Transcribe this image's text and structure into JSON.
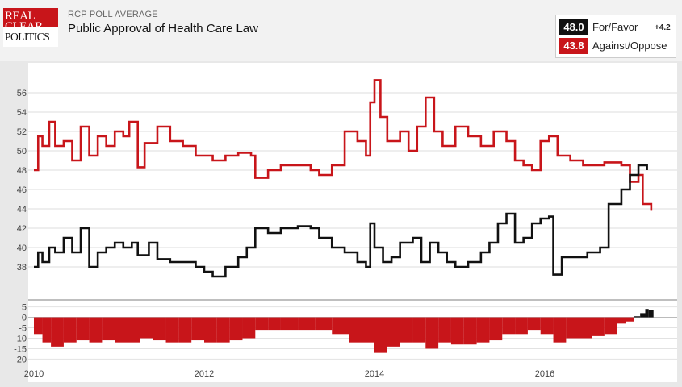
{
  "header": {
    "logo": {
      "line1": "REAL",
      "line2": "CLEAR",
      "line3": "POLITICS"
    },
    "subtitle": "RCP POLL AVERAGE",
    "title": "Public Approval of Health Care Law"
  },
  "legend": {
    "favor": {
      "value": "48.0",
      "label": "For/Favor",
      "spread": "+4.2",
      "color": "#111111"
    },
    "oppose": {
      "value": "43.8",
      "label": "Against/Oppose",
      "color": "#c8151a"
    }
  },
  "chart_data": [
    {
      "type": "line",
      "title": "Public Approval of Health Care Law",
      "x_ticks": [
        "2010",
        "2012",
        "2014",
        "2016"
      ],
      "ylim": [
        36,
        57.5
      ],
      "y_ticks": [
        38,
        40,
        42,
        44,
        46,
        48,
        50,
        52,
        54,
        56
      ],
      "grid": true,
      "series": [
        {
          "name": "Against/Oppose",
          "color": "#c8151a",
          "points": [
            [
              2010.0,
              48.0
            ],
            [
              2010.05,
              51.5
            ],
            [
              2010.1,
              50.5
            ],
            [
              2010.18,
              53.0
            ],
            [
              2010.25,
              50.5
            ],
            [
              2010.35,
              51.0
            ],
            [
              2010.45,
              49.0
            ],
            [
              2010.55,
              52.5
            ],
            [
              2010.65,
              49.5
            ],
            [
              2010.75,
              51.5
            ],
            [
              2010.85,
              50.5
            ],
            [
              2010.95,
              52.0
            ],
            [
              2011.05,
              51.5
            ],
            [
              2011.12,
              53.0
            ],
            [
              2011.22,
              48.3
            ],
            [
              2011.3,
              50.8
            ],
            [
              2011.45,
              52.5
            ],
            [
              2011.6,
              51.0
            ],
            [
              2011.75,
              50.5
            ],
            [
              2011.9,
              49.5
            ],
            [
              2012.0,
              49.5
            ],
            [
              2012.1,
              49.0
            ],
            [
              2012.25,
              49.5
            ],
            [
              2012.4,
              49.8
            ],
            [
              2012.55,
              49.5
            ],
            [
              2012.6,
              47.2
            ],
            [
              2012.75,
              48.0
            ],
            [
              2012.9,
              48.5
            ],
            [
              2013.1,
              48.5
            ],
            [
              2013.25,
              48.0
            ],
            [
              2013.35,
              47.5
            ],
            [
              2013.5,
              48.5
            ],
            [
              2013.65,
              52.0
            ],
            [
              2013.8,
              51.0
            ],
            [
              2013.9,
              49.5
            ],
            [
              2013.95,
              55.0
            ],
            [
              2014.0,
              57.3
            ],
            [
              2014.07,
              53.5
            ],
            [
              2014.15,
              51.0
            ],
            [
              2014.3,
              52.0
            ],
            [
              2014.4,
              50.0
            ],
            [
              2014.5,
              52.5
            ],
            [
              2014.6,
              55.5
            ],
            [
              2014.7,
              52.0
            ],
            [
              2014.8,
              50.5
            ],
            [
              2014.95,
              52.5
            ],
            [
              2015.1,
              51.5
            ],
            [
              2015.25,
              50.5
            ],
            [
              2015.4,
              52.0
            ],
            [
              2015.55,
              51.0
            ],
            [
              2015.65,
              49.0
            ],
            [
              2015.75,
              48.5
            ],
            [
              2015.85,
              48.0
            ],
            [
              2015.95,
              51.0
            ],
            [
              2016.05,
              51.5
            ],
            [
              2016.15,
              49.5
            ],
            [
              2016.3,
              49.0
            ],
            [
              2016.45,
              48.5
            ],
            [
              2016.7,
              48.8
            ],
            [
              2016.9,
              48.5
            ],
            [
              2017.0,
              46.8
            ],
            [
              2017.1,
              47.5
            ],
            [
              2017.15,
              44.5
            ],
            [
              2017.25,
              43.8
            ]
          ]
        },
        {
          "name": "For/Favor",
          "color": "#111111",
          "points": [
            [
              2010.0,
              38.0
            ],
            [
              2010.05,
              39.5
            ],
            [
              2010.1,
              38.5
            ],
            [
              2010.18,
              40.0
            ],
            [
              2010.25,
              39.5
            ],
            [
              2010.35,
              41.0
            ],
            [
              2010.45,
              39.5
            ],
            [
              2010.55,
              42.0
            ],
            [
              2010.65,
              38.0
            ],
            [
              2010.75,
              39.5
            ],
            [
              2010.85,
              40.0
            ],
            [
              2010.95,
              40.5
            ],
            [
              2011.05,
              40.0
            ],
            [
              2011.15,
              40.5
            ],
            [
              2011.22,
              39.2
            ],
            [
              2011.35,
              40.5
            ],
            [
              2011.45,
              38.8
            ],
            [
              2011.6,
              38.5
            ],
            [
              2011.75,
              38.5
            ],
            [
              2011.9,
              38.0
            ],
            [
              2012.0,
              37.5
            ],
            [
              2012.1,
              37.0
            ],
            [
              2012.25,
              38.0
            ],
            [
              2012.4,
              39.0
            ],
            [
              2012.5,
              40.0
            ],
            [
              2012.6,
              42.0
            ],
            [
              2012.75,
              41.5
            ],
            [
              2012.9,
              42.0
            ],
            [
              2013.1,
              42.2
            ],
            [
              2013.25,
              42.0
            ],
            [
              2013.35,
              41.0
            ],
            [
              2013.5,
              40.0
            ],
            [
              2013.65,
              39.5
            ],
            [
              2013.8,
              38.5
            ],
            [
              2013.9,
              38.0
            ],
            [
              2013.95,
              42.5
            ],
            [
              2014.0,
              40.0
            ],
            [
              2014.1,
              38.5
            ],
            [
              2014.2,
              39.0
            ],
            [
              2014.3,
              40.5
            ],
            [
              2014.45,
              41.0
            ],
            [
              2014.55,
              38.5
            ],
            [
              2014.65,
              40.5
            ],
            [
              2014.75,
              39.5
            ],
            [
              2014.85,
              38.5
            ],
            [
              2014.95,
              38.0
            ],
            [
              2015.1,
              38.5
            ],
            [
              2015.25,
              39.5
            ],
            [
              2015.35,
              40.5
            ],
            [
              2015.45,
              42.5
            ],
            [
              2015.55,
              43.5
            ],
            [
              2015.65,
              40.5
            ],
            [
              2015.75,
              41.0
            ],
            [
              2015.85,
              42.5
            ],
            [
              2015.95,
              43.0
            ],
            [
              2016.05,
              43.2
            ],
            [
              2016.1,
              37.2
            ],
            [
              2016.2,
              39.0
            ],
            [
              2016.35,
              39.0
            ],
            [
              2016.5,
              39.5
            ],
            [
              2016.65,
              40.0
            ],
            [
              2016.75,
              44.5
            ],
            [
              2016.9,
              46.0
            ],
            [
              2017.0,
              47.5
            ],
            [
              2017.1,
              48.5
            ],
            [
              2017.2,
              48.0
            ]
          ]
        }
      ]
    },
    {
      "type": "area",
      "title": "",
      "x_ticks": [
        "2010",
        "2012",
        "2014",
        "2016"
      ],
      "ylim": [
        -21,
        6
      ],
      "y_ticks": [
        5,
        0,
        -5,
        -10,
        -15,
        -20
      ],
      "grid": true,
      "series": [
        {
          "name": "",
          "color": "#c8151a",
          "points": [
            [
              2010.0,
              -8
            ],
            [
              2010.1,
              -12
            ],
            [
              2010.2,
              -14
            ],
            [
              2010.35,
              -12
            ],
            [
              2010.5,
              -11
            ],
            [
              2010.65,
              -12
            ],
            [
              2010.8,
              -11
            ],
            [
              2010.95,
              -12
            ],
            [
              2011.1,
              -12
            ],
            [
              2011.25,
              -10
            ],
            [
              2011.4,
              -11
            ],
            [
              2011.55,
              -12
            ],
            [
              2011.7,
              -12
            ],
            [
              2011.85,
              -11
            ],
            [
              2012.0,
              -12
            ],
            [
              2012.15,
              -12
            ],
            [
              2012.3,
              -11
            ],
            [
              2012.45,
              -10
            ],
            [
              2012.6,
              -6
            ],
            [
              2012.75,
              -6
            ],
            [
              2012.9,
              -6
            ],
            [
              2013.1,
              -6
            ],
            [
              2013.3,
              -6
            ],
            [
              2013.5,
              -8
            ],
            [
              2013.7,
              -12
            ],
            [
              2013.85,
              -12
            ],
            [
              2014.0,
              -17
            ],
            [
              2014.15,
              -14
            ],
            [
              2014.3,
              -12
            ],
            [
              2014.45,
              -12
            ],
            [
              2014.6,
              -15
            ],
            [
              2014.75,
              -12
            ],
            [
              2014.9,
              -13
            ],
            [
              2015.05,
              -13
            ],
            [
              2015.2,
              -12
            ],
            [
              2015.35,
              -11
            ],
            [
              2015.5,
              -8
            ],
            [
              2015.65,
              -8
            ],
            [
              2015.8,
              -6
            ],
            [
              2015.95,
              -8
            ],
            [
              2016.1,
              -12
            ],
            [
              2016.25,
              -10
            ],
            [
              2016.4,
              -10
            ],
            [
              2016.55,
              -9
            ],
            [
              2016.7,
              -8
            ],
            [
              2016.85,
              -3
            ],
            [
              2016.95,
              -2
            ],
            [
              2017.05,
              0.5
            ],
            [
              2017.12,
              2
            ],
            [
              2017.18,
              4
            ],
            [
              2017.22,
              3.5
            ]
          ]
        }
      ]
    }
  ]
}
